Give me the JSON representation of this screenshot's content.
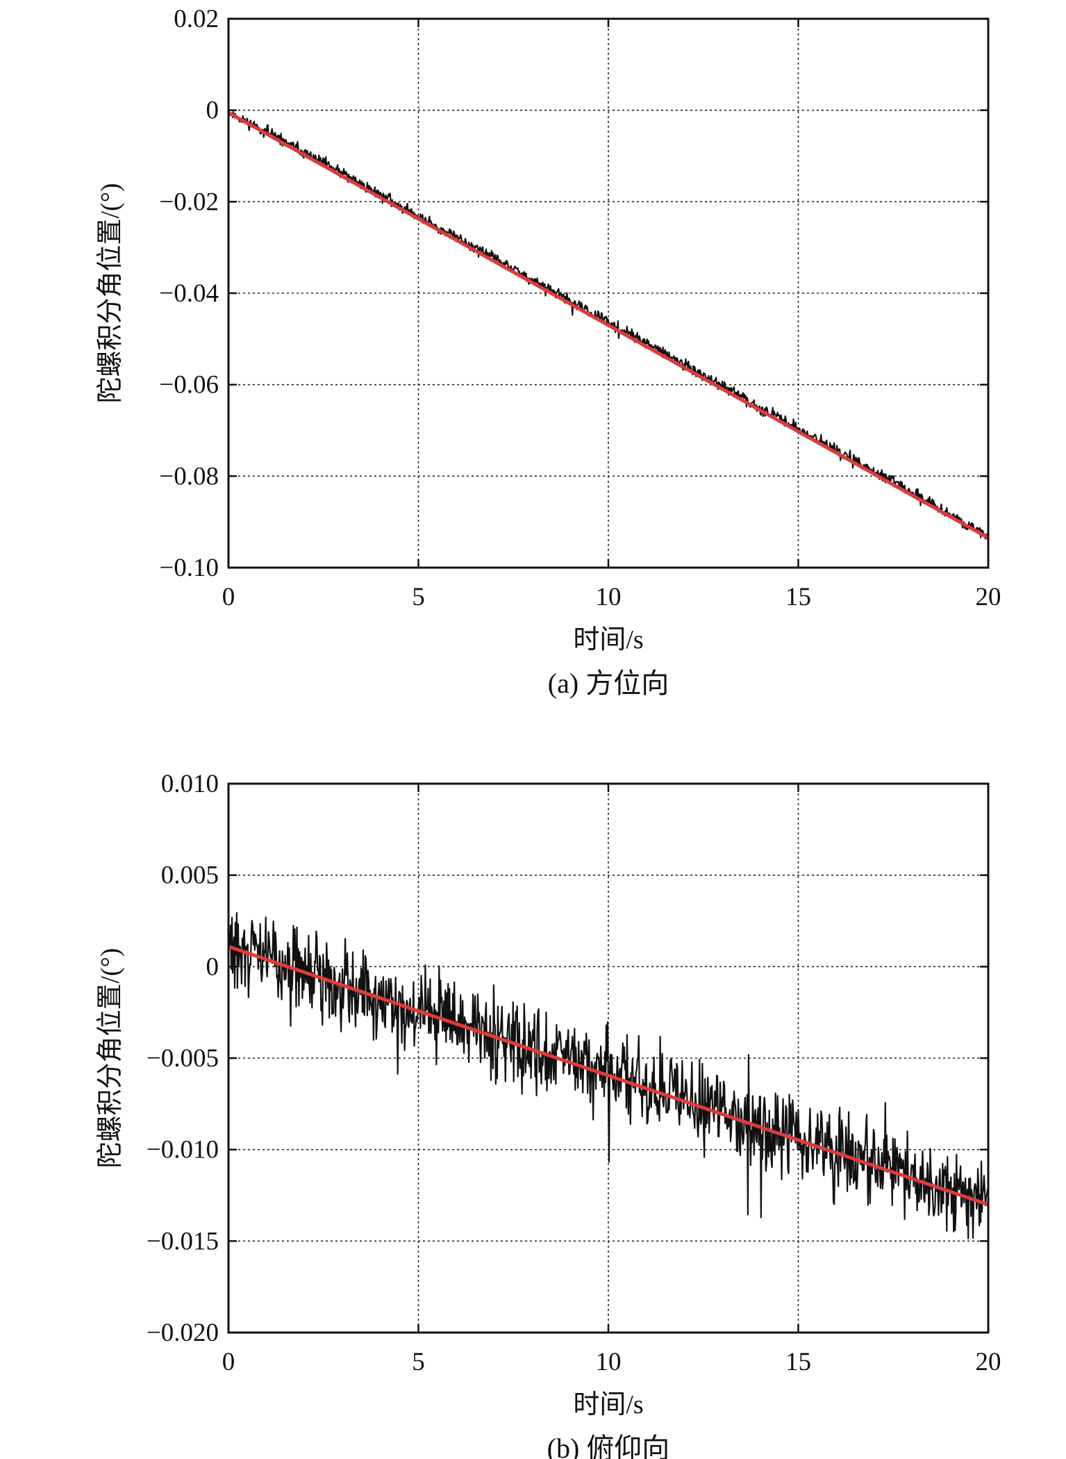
{
  "chart_data": [
    {
      "type": "line",
      "caption": "(a) 方位向",
      "xlabel": "时间/s",
      "ylabel": "陀螺积分角位置/(°)",
      "xlim": [
        0,
        20
      ],
      "ylim": [
        -0.1,
        0.02
      ],
      "x_ticks": [
        "0",
        "5",
        "10",
        "15",
        "20"
      ],
      "y_ticks": [
        "0.02",
        "0",
        "−0.02",
        "−0.04",
        "−0.06",
        "−0.08",
        "−0.10"
      ],
      "grid": true,
      "series": [
        {
          "role": "measured",
          "color": "#111111",
          "x": [
            0,
            1,
            2,
            3,
            4,
            5,
            6,
            7,
            8,
            9,
            10,
            11,
            12,
            13,
            14,
            15,
            16,
            17,
            18,
            19,
            20
          ],
          "y": [
            -0.0005,
            -0.0047,
            -0.0092,
            -0.0139,
            -0.0185,
            -0.0232,
            -0.0278,
            -0.0324,
            -0.0371,
            -0.0418,
            -0.0464,
            -0.051,
            -0.0557,
            -0.0604,
            -0.065,
            -0.0697,
            -0.0743,
            -0.079,
            -0.0836,
            -0.0883,
            -0.0935
          ],
          "noise_amplitude": 0.0018
        },
        {
          "role": "fit",
          "color": "#e03a3a",
          "x": [
            0,
            20
          ],
          "y": [
            -0.0005,
            -0.0935
          ]
        }
      ]
    },
    {
      "type": "line",
      "caption": "(b) 俯仰向",
      "xlabel": "时间/s",
      "ylabel": "陀螺积分角位置/(°)",
      "xlim": [
        0,
        20
      ],
      "ylim": [
        -0.02,
        0.01
      ],
      "x_ticks": [
        "0",
        "5",
        "10",
        "15",
        "20"
      ],
      "y_ticks": [
        "0.010",
        "0.005",
        "0",
        "−0.005",
        "−0.010",
        "−0.015",
        "−0.020"
      ],
      "grid": true,
      "series": [
        {
          "role": "measured",
          "color": "#111111",
          "x": [
            0,
            1,
            2,
            3,
            4,
            5,
            6,
            7,
            8,
            9,
            10,
            11,
            12,
            13,
            14,
            15,
            16,
            17,
            18,
            19,
            20
          ],
          "y": [
            0.0011,
            0.0004,
            -0.0003,
            -0.001,
            -0.0017,
            -0.0024,
            -0.0031,
            -0.0038,
            -0.0045,
            -0.0052,
            -0.0059,
            -0.0066,
            -0.0073,
            -0.008,
            -0.0087,
            -0.0094,
            -0.0101,
            -0.0108,
            -0.0115,
            -0.0122,
            -0.013
          ],
          "noise_amplitude": 0.0032
        },
        {
          "role": "fit",
          "color": "#e03a3a",
          "x": [
            0,
            20
          ],
          "y": [
            0.0011,
            -0.013
          ]
        }
      ]
    }
  ]
}
